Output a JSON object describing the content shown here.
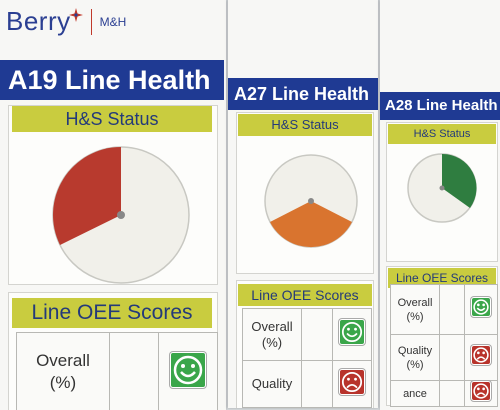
{
  "logo": {
    "brand": "Berry",
    "sub": "M&H"
  },
  "boards": [
    {
      "title": "A19 Line Health",
      "status_label": "H&S Status",
      "scores_label": "Line OEE Scores",
      "rows": [
        {
          "label": "Overall\n(%)",
          "face": "happy"
        }
      ]
    },
    {
      "title": "A27 Line Health",
      "status_label": "H&S Status",
      "scores_label": "Line OEE Scores",
      "rows": [
        {
          "label": "Overall\n(%)",
          "face": "happy"
        },
        {
          "label": "Quality",
          "face": "sad"
        }
      ]
    },
    {
      "title": "A28 Line Health",
      "status_label": "H&S Status",
      "scores_label": "Line OEE Scores",
      "rows": [
        {
          "label": "Overall\n(%)",
          "face": "happy"
        },
        {
          "label": "Quality\n(%)",
          "face": "sad"
        },
        {
          "label": "ance",
          "face": "sad"
        }
      ]
    }
  ],
  "colors": {
    "title_bar": "#1f3a93",
    "label_bg": "#c9cc3f",
    "dial_red": "#b83a2e",
    "dial_orange": "#d9742f",
    "dial_green": "#2f7d40",
    "face_happy": "#3aa64a",
    "face_sad": "#b8332b"
  },
  "icons": [
    "berry-logo-icon",
    "smiley-face-icon",
    "sad-face-icon",
    "dial-pointer-icon"
  ]
}
